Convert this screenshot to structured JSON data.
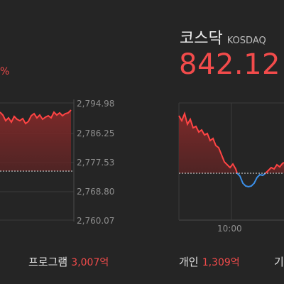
{
  "kospi": {
    "change_fragment": "%",
    "y_ticks": [
      "2,794.98",
      "2,786.25",
      "2,777.53",
      "2,768.80",
      "2,760.07"
    ],
    "footer": {
      "label": "프로그램",
      "value": "3,007",
      "unit": "억"
    }
  },
  "kosdaq": {
    "title": "코스닥",
    "subtitle": "KOSDAQ",
    "price": "842.12",
    "x_tick": "10:00",
    "footer": [
      {
        "label": "개인",
        "value": "1,309",
        "unit": "억"
      },
      {
        "label": "기"
      }
    ]
  },
  "colors": {
    "background": "#252525",
    "up": "#f24b4b",
    "down": "#3b8fe8",
    "grid": "#3a3a3a"
  }
}
